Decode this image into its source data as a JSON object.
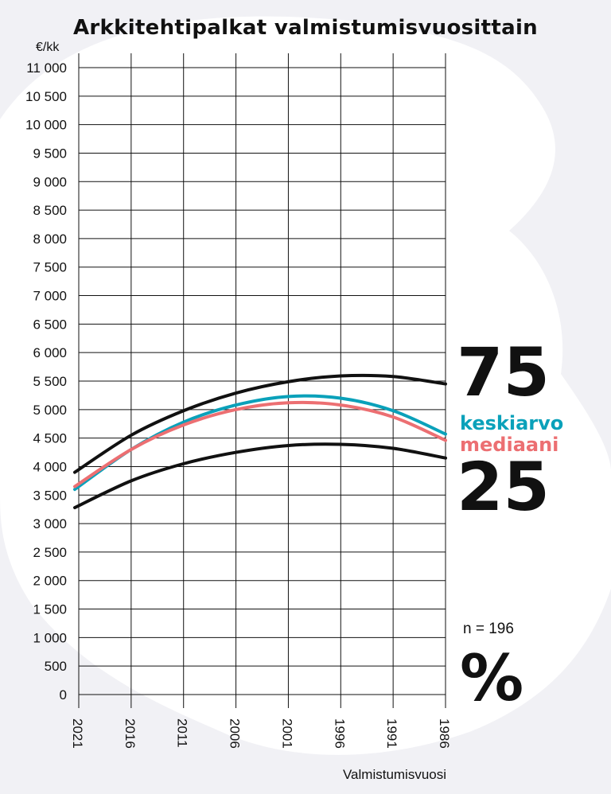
{
  "chart_data": {
    "type": "line",
    "title": "Arkkitehtipalkat valmistumisvuosittain",
    "ylabel": "€/kk",
    "xlabel": "Valmistumisvuosi",
    "ylim": [
      0,
      11000
    ],
    "yticks": [
      {
        "v": 0,
        "label": "0"
      },
      {
        "v": 500,
        "label": "500"
      },
      {
        "v": 1000,
        "label": "1 000"
      },
      {
        "v": 1500,
        "label": "1 500"
      },
      {
        "v": 2000,
        "label": "2 000"
      },
      {
        "v": 2500,
        "label": "2 500"
      },
      {
        "v": 3000,
        "label": "3 000"
      },
      {
        "v": 3500,
        "label": "3 500"
      },
      {
        "v": 4000,
        "label": "4 000"
      },
      {
        "v": 4500,
        "label": "4 500"
      },
      {
        "v": 5000,
        "label": "5 000"
      },
      {
        "v": 5500,
        "label": "5 500"
      },
      {
        "v": 6000,
        "label": "6 000"
      },
      {
        "v": 6500,
        "label": "6 500"
      },
      {
        "v": 7000,
        "label": "7 000"
      },
      {
        "v": 7500,
        "label": "7 500"
      },
      {
        "v": 8000,
        "label": "8 000"
      },
      {
        "v": 8500,
        "label": "8 500"
      },
      {
        "v": 9000,
        "label": "9 000"
      },
      {
        "v": 9500,
        "label": "9 500"
      },
      {
        "v": 10000,
        "label": "10 000"
      },
      {
        "v": 10500,
        "label": "10 500"
      },
      {
        "v": 11000,
        "label": "11 000"
      }
    ],
    "x_ticks": [
      "2021",
      "2016",
      "2011",
      "2006",
      "2001",
      "1996",
      "1991",
      "1986"
    ],
    "x_range": [
      2021,
      1986
    ],
    "grid": true,
    "series": [
      {
        "name": "75",
        "color": "#111111",
        "x": [
          2021,
          2016,
          2011,
          2006,
          2001,
          1996,
          1991,
          1986
        ],
        "y": [
          3900,
          4550,
          4980,
          5290,
          5490,
          5590,
          5580,
          5450
        ]
      },
      {
        "name": "keskiarvo",
        "color": "#0aa1ba",
        "x": [
          2021,
          2016,
          2011,
          2006,
          2001,
          1996,
          1991,
          1986
        ],
        "y": [
          3600,
          4300,
          4780,
          5080,
          5230,
          5200,
          4980,
          4570
        ]
      },
      {
        "name": "mediaani",
        "color": "#ec6f72",
        "x": [
          2021,
          2016,
          2011,
          2006,
          2001,
          1996,
          1991,
          1986
        ],
        "y": [
          3650,
          4300,
          4730,
          5000,
          5120,
          5080,
          4870,
          4460
        ]
      },
      {
        "name": "25",
        "color": "#111111",
        "x": [
          2021,
          2016,
          2011,
          2006,
          2001,
          1996,
          1991,
          1986
        ],
        "y": [
          3280,
          3750,
          4050,
          4250,
          4370,
          4390,
          4320,
          4150
        ]
      }
    ],
    "annotations": {
      "p75": "75",
      "mean": "keskiarvo",
      "median": "mediaani",
      "p25": "25",
      "n": "n = 196",
      "percent": "%"
    }
  }
}
